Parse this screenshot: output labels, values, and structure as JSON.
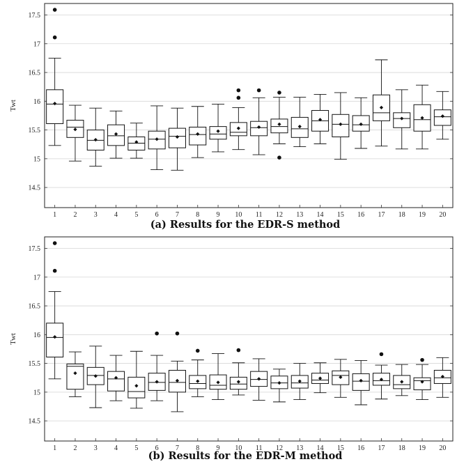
{
  "chart_data": [
    {
      "type": "box",
      "caption": "(a) Results for the EDR-S method",
      "ylabel": "Twt",
      "ylim": [
        14.15,
        17.7
      ],
      "yticks": [
        14.5,
        15,
        15.5,
        16,
        16.5,
        17,
        17.5
      ],
      "ytick_labels": [
        "14.5",
        "15",
        "15.5",
        "16",
        "16.5",
        "17",
        "17.5"
      ],
      "grid": true,
      "categories": [
        "1",
        "2",
        "3",
        "4",
        "5",
        "6",
        "7",
        "8",
        "9",
        "10",
        "11",
        "12",
        "13",
        "14",
        "15",
        "16",
        "17",
        "18",
        "19",
        "20"
      ],
      "boxes": [
        {
          "min": 15.23,
          "q1": 15.61,
          "median": 15.95,
          "q3": 16.2,
          "max": 16.75,
          "mean": 15.96,
          "outliers": [
            17.11,
            17.59
          ]
        },
        {
          "min": 14.96,
          "q1": 15.37,
          "median": 15.55,
          "q3": 15.67,
          "max": 15.93,
          "mean": 15.51,
          "outliers": []
        },
        {
          "min": 14.87,
          "q1": 15.15,
          "median": 15.32,
          "q3": 15.5,
          "max": 15.88,
          "mean": 15.33,
          "outliers": []
        },
        {
          "min": 15.01,
          "q1": 15.23,
          "median": 15.4,
          "q3": 15.59,
          "max": 15.83,
          "mean": 15.43,
          "outliers": []
        },
        {
          "min": 15.01,
          "q1": 15.15,
          "median": 15.27,
          "q3": 15.38,
          "max": 15.62,
          "mean": 15.29,
          "outliers": []
        },
        {
          "min": 14.81,
          "q1": 15.17,
          "median": 15.34,
          "q3": 15.48,
          "max": 15.92,
          "mean": 15.34,
          "outliers": []
        },
        {
          "min": 14.8,
          "q1": 15.19,
          "median": 15.39,
          "q3": 15.53,
          "max": 15.88,
          "mean": 15.38,
          "outliers": []
        },
        {
          "min": 15.02,
          "q1": 15.24,
          "median": 15.42,
          "q3": 15.55,
          "max": 15.91,
          "mean": 15.43,
          "outliers": []
        },
        {
          "min": 15.12,
          "q1": 15.34,
          "median": 15.43,
          "q3": 15.56,
          "max": 15.95,
          "mean": 15.48,
          "outliers": []
        },
        {
          "min": 15.16,
          "q1": 15.4,
          "median": 15.46,
          "q3": 15.63,
          "max": 15.89,
          "mean": 15.53,
          "outliers": [
            16.06,
            16.19
          ]
        },
        {
          "min": 15.07,
          "q1": 15.4,
          "median": 15.54,
          "q3": 15.65,
          "max": 16.06,
          "mean": 15.55,
          "outliers": [
            16.19
          ]
        },
        {
          "min": 15.26,
          "q1": 15.45,
          "median": 15.56,
          "q3": 15.69,
          "max": 16.07,
          "mean": 15.6,
          "outliers": [
            15.02,
            16.15
          ]
        },
        {
          "min": 15.21,
          "q1": 15.37,
          "median": 15.52,
          "q3": 15.72,
          "max": 16.07,
          "mean": 15.56,
          "outliers": []
        },
        {
          "min": 15.26,
          "q1": 15.48,
          "median": 15.66,
          "q3": 15.84,
          "max": 16.12,
          "mean": 15.68,
          "outliers": []
        },
        {
          "min": 14.99,
          "q1": 15.38,
          "median": 15.6,
          "q3": 15.77,
          "max": 16.15,
          "mean": 15.6,
          "outliers": []
        },
        {
          "min": 15.18,
          "q1": 15.48,
          "median": 15.59,
          "q3": 15.75,
          "max": 16.06,
          "mean": 15.6,
          "outliers": []
        },
        {
          "min": 15.22,
          "q1": 15.66,
          "median": 15.8,
          "q3": 16.11,
          "max": 16.72,
          "mean": 15.89,
          "outliers": []
        },
        {
          "min": 15.17,
          "q1": 15.54,
          "median": 15.7,
          "q3": 15.8,
          "max": 16.2,
          "mean": 15.7,
          "outliers": []
        },
        {
          "min": 15.17,
          "q1": 15.48,
          "median": 15.68,
          "q3": 15.94,
          "max": 16.28,
          "mean": 15.71,
          "outliers": []
        },
        {
          "min": 15.34,
          "q1": 15.58,
          "median": 15.73,
          "q3": 15.85,
          "max": 16.17,
          "mean": 15.74,
          "outliers": []
        }
      ]
    },
    {
      "type": "box",
      "caption": "(b) Results for the EDR-M method",
      "ylabel": "Twt",
      "ylim": [
        14.15,
        17.7
      ],
      "yticks": [
        14.5,
        15,
        15.5,
        16,
        16.5,
        17,
        17.5
      ],
      "ytick_labels": [
        "14.5",
        "15",
        "15.5",
        "16",
        "16.5",
        "17",
        "17.5"
      ],
      "grid": true,
      "categories": [
        "1",
        "2",
        "3",
        "4",
        "5",
        "6",
        "7",
        "8",
        "9",
        "10",
        "11",
        "12",
        "13",
        "14",
        "15",
        "16",
        "17",
        "18",
        "19",
        "20"
      ],
      "boxes": [
        {
          "min": 15.23,
          "q1": 15.61,
          "median": 15.95,
          "q3": 16.2,
          "max": 16.75,
          "mean": 15.96,
          "outliers": [
            17.11,
            17.59
          ]
        },
        {
          "min": 14.92,
          "q1": 15.05,
          "median": 15.45,
          "q3": 15.49,
          "max": 15.7,
          "mean": 15.33,
          "outliers": []
        },
        {
          "min": 14.73,
          "q1": 15.13,
          "median": 15.29,
          "q3": 15.43,
          "max": 15.8,
          "mean": 15.28,
          "outliers": []
        },
        {
          "min": 14.85,
          "q1": 15.02,
          "median": 15.23,
          "q3": 15.36,
          "max": 15.64,
          "mean": 15.25,
          "outliers": []
        },
        {
          "min": 14.72,
          "q1": 14.9,
          "median": 15.01,
          "q3": 15.26,
          "max": 15.71,
          "mean": 15.11,
          "outliers": []
        },
        {
          "min": 14.85,
          "q1": 15.03,
          "median": 15.17,
          "q3": 15.33,
          "max": 15.64,
          "mean": 15.18,
          "outliers": [
            16.02
          ]
        },
        {
          "min": 14.66,
          "q1": 15.0,
          "median": 15.17,
          "q3": 15.38,
          "max": 15.54,
          "mean": 15.2,
          "outliers": [
            16.02
          ]
        },
        {
          "min": 14.92,
          "q1": 15.06,
          "median": 15.15,
          "q3": 15.29,
          "max": 15.56,
          "mean": 15.19,
          "outliers": [
            15.72
          ]
        },
        {
          "min": 14.87,
          "q1": 15.05,
          "median": 15.12,
          "q3": 15.3,
          "max": 15.67,
          "mean": 15.17,
          "outliers": []
        },
        {
          "min": 14.95,
          "q1": 15.05,
          "median": 15.14,
          "q3": 15.26,
          "max": 15.51,
          "mean": 15.18,
          "outliers": [
            15.73
          ]
        },
        {
          "min": 14.86,
          "q1": 15.1,
          "median": 15.22,
          "q3": 15.36,
          "max": 15.58,
          "mean": 15.23,
          "outliers": []
        },
        {
          "min": 14.83,
          "q1": 15.06,
          "median": 15.16,
          "q3": 15.28,
          "max": 15.4,
          "mean": 15.16,
          "outliers": []
        },
        {
          "min": 14.87,
          "q1": 15.07,
          "median": 15.16,
          "q3": 15.29,
          "max": 15.5,
          "mean": 15.19,
          "outliers": []
        },
        {
          "min": 14.99,
          "q1": 15.15,
          "median": 15.21,
          "q3": 15.33,
          "max": 15.51,
          "mean": 15.24,
          "outliers": []
        },
        {
          "min": 14.91,
          "q1": 15.13,
          "median": 15.29,
          "q3": 15.37,
          "max": 15.57,
          "mean": 15.26,
          "outliers": []
        },
        {
          "min": 14.78,
          "q1": 15.03,
          "median": 15.19,
          "q3": 15.32,
          "max": 15.55,
          "mean": 15.2,
          "outliers": []
        },
        {
          "min": 14.88,
          "q1": 15.12,
          "median": 15.2,
          "q3": 15.33,
          "max": 15.47,
          "mean": 15.22,
          "outliers": [
            15.66
          ]
        },
        {
          "min": 14.94,
          "q1": 15.06,
          "median": 15.13,
          "q3": 15.29,
          "max": 15.48,
          "mean": 15.18,
          "outliers": []
        },
        {
          "min": 14.87,
          "q1": 15.04,
          "median": 15.2,
          "q3": 15.25,
          "max": 15.48,
          "mean": 15.18,
          "outliers": [
            15.56
          ]
        },
        {
          "min": 14.91,
          "q1": 15.15,
          "median": 15.25,
          "q3": 15.38,
          "max": 15.6,
          "mean": 15.27,
          "outliers": []
        }
      ]
    }
  ]
}
